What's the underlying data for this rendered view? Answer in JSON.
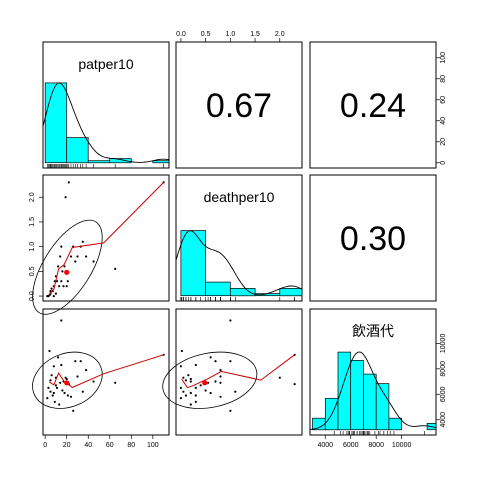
{
  "chart_data": {
    "type": "scatter-matrix",
    "variables": [
      "patper10",
      "deathper10",
      "飲酒代"
    ],
    "correlations": [
      {
        "row": 0,
        "col": 1,
        "value": "0.67"
      },
      {
        "row": 0,
        "col": 2,
        "value": "0.24"
      },
      {
        "row": 1,
        "col": 2,
        "value": "0.30"
      }
    ],
    "axes": {
      "patper10": {
        "range": [
          -2,
          115
        ],
        "ticks": [
          0,
          20,
          40,
          60,
          80,
          100
        ],
        "tick_labels": [
          "0",
          "20",
          "40",
          "60",
          "80",
          "100"
        ]
      },
      "deathper10": {
        "range": [
          -0.1,
          2.45
        ],
        "ticks": [
          0,
          0.5,
          1,
          1.5,
          2
        ],
        "tick_labels": [
          "0.0",
          "0.5",
          "1.0",
          "1.5",
          "2.0"
        ]
      },
      "飲酒代": {
        "range": [
          2800,
          12700
        ],
        "ticks": [
          4000,
          6000,
          8000,
          10000
        ],
        "tick_labels": [
          "4000",
          "6000",
          "8000",
          "10000"
        ]
      },
      "freq": {
        "range": [
          -5,
          115
        ],
        "ticks": [
          0,
          20,
          40,
          60,
          80,
          100
        ],
        "tick_labels": [
          "0",
          "20",
          "40",
          "60",
          "80",
          "100"
        ]
      }
    },
    "patper10_values": [
      2,
      3,
      4,
      5,
      5,
      6,
      7,
      8,
      8,
      9,
      10,
      10,
      11,
      12,
      13,
      14,
      15,
      15,
      16,
      17,
      18,
      19,
      20,
      21,
      22,
      24,
      26,
      28,
      30,
      33,
      35,
      38,
      45,
      65,
      110
    ],
    "deathper10_values": [
      0.0,
      0.0,
      0.02,
      0.05,
      0.1,
      0.15,
      0.1,
      0.0,
      0.2,
      0.3,
      0.05,
      0.4,
      0.3,
      0.6,
      0.2,
      0.8,
      1.0,
      0.3,
      0.5,
      0.2,
      0.6,
      2.0,
      0.2,
      0.3,
      2.3,
      0.8,
      1.0,
      0.7,
      0.8,
      1.0,
      1.1,
      0.8,
      0.7,
      0.55,
      2.3
    ],
    "drinking_values": [
      5700,
      6500,
      9400,
      6200,
      7100,
      7500,
      5900,
      8200,
      6100,
      5400,
      7300,
      6700,
      6500,
      8900,
      5200,
      6900,
      11800,
      8300,
      6300,
      7000,
      6100,
      7300,
      7200,
      5900,
      6800,
      5800,
      4700,
      8600,
      7400,
      8600,
      6200,
      7900,
      7000,
      6900,
      9100
    ],
    "histograms": {
      "patper10": {
        "breaks": [
          0,
          20,
          40,
          60,
          80,
          100,
          120
        ],
        "counts": [
          76,
          24,
          2,
          4,
          0,
          2
        ]
      },
      "deathper10": {
        "breaks": [
          0,
          0.5,
          1,
          1.5,
          2,
          2.5
        ],
        "counts": [
          62,
          13,
          7,
          2,
          7
        ]
      },
      "飲酒代": {
        "breaks": [
          3000,
          4000,
          5000,
          6000,
          7000,
          8000,
          9000,
          10000,
          11000,
          12000,
          13000
        ],
        "counts": [
          11,
          30,
          74,
          66,
          53,
          44,
          11,
          0,
          0,
          6
        ]
      }
    },
    "mean_points": [
      {
        "x_var": "patper10",
        "y_var": "deathper10",
        "x": 20,
        "y": 0.48
      },
      {
        "x_var": "patper10",
        "y_var": "飲酒代",
        "x": 20,
        "y": 6900
      },
      {
        "x_var": "deathper10",
        "y_var": "飲酒代",
        "x": 0.48,
        "y": 6900
      }
    ],
    "grid": false,
    "colors": {
      "hist_fill": "#00ffff",
      "smooth": "#cc0000",
      "mean_point": "#ff0000",
      "points": "#000000"
    }
  }
}
